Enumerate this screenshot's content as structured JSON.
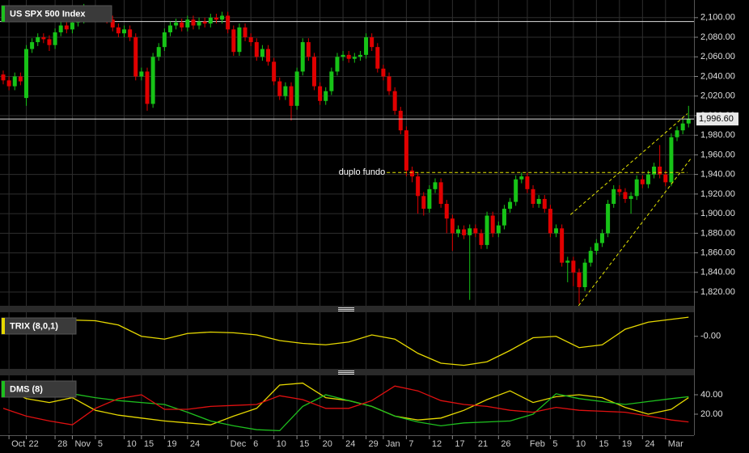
{
  "chart_data": [
    {
      "type": "candlestick",
      "title": "US SPX 500 Index",
      "categories": [
        null,
        "Oct",
        null,
        null,
        "22",
        null,
        null,
        null,
        null,
        "28",
        null,
        null,
        "Nov",
        null,
        null,
        null,
        "5",
        null,
        null,
        null,
        null,
        "10",
        null,
        null,
        "15",
        null,
        null,
        null,
        "19",
        null,
        null,
        null,
        "24",
        null,
        null,
        null,
        null,
        null,
        null,
        "Dec",
        null,
        null,
        null,
        "6",
        null,
        null,
        null,
        "10",
        null,
        null,
        null,
        "15",
        null,
        null,
        null,
        "20",
        null,
        null,
        null,
        "24",
        null,
        null,
        null,
        "29",
        null,
        null,
        "Jan",
        null,
        null,
        null,
        "7",
        null,
        null,
        null,
        "12",
        null,
        null,
        null,
        "17",
        null,
        null,
        null,
        "21",
        null,
        null,
        null,
        "26",
        null,
        null,
        null,
        null,
        "Feb",
        null,
        null,
        null,
        "5",
        null,
        null,
        null,
        "10",
        null,
        null,
        null,
        "15",
        null,
        null,
        null,
        "19",
        null,
        null,
        null,
        "24",
        null,
        null,
        null,
        "Mar",
        null,
        null,
        null,
        null
      ],
      "open": [
        2042,
        2036,
        2030,
        2040,
        2018,
        2068,
        2075,
        2080,
        2078,
        2072,
        2085,
        2092,
        2088,
        2095,
        2098,
        2108,
        2102,
        2105,
        2100,
        2098,
        2090,
        2084,
        2088,
        2080,
        2040,
        2045,
        2012,
        2060,
        2070,
        2085,
        2092,
        2095,
        2090,
        2098,
        2092,
        2096,
        2094,
        2100,
        2098,
        2102,
        2088,
        2065,
        2090,
        2080,
        2075,
        2060,
        2068,
        2055,
        2035,
        2020,
        2030,
        2010,
        2045,
        2075,
        2060,
        2030,
        2015,
        2025,
        2045,
        2060,
        2062,
        2058,
        2060,
        2062,
        2080,
        2070,
        2048,
        2040,
        2025,
        2005,
        1985,
        1944,
        1938,
        1918,
        1905,
        1925,
        1932,
        1910,
        1895,
        1880,
        1884,
        1878,
        1885,
        1880,
        1868,
        1898,
        1880,
        1888,
        1905,
        1912,
        1935,
        1938,
        1925,
        1910,
        1915,
        1905,
        1880,
        1885,
        1850,
        1852,
        1840,
        1825,
        1850,
        1862,
        1870,
        1880,
        1910,
        1925,
        1922,
        1915,
        1918,
        1935,
        1930,
        1940,
        1948,
        1940,
        1932,
        1978,
        1985,
        1992
      ],
      "high": [
        2046,
        2040,
        2044,
        2044,
        2072,
        2079,
        2084,
        2084,
        2082,
        2089,
        2096,
        2096,
        2099,
        2102,
        2114,
        2112,
        2109,
        2109,
        2104,
        2102,
        2094,
        2092,
        2092,
        2084,
        2049,
        2049,
        2064,
        2074,
        2089,
        2096,
        2099,
        2099,
        2102,
        2102,
        2100,
        2100,
        2104,
        2104,
        2106,
        2106,
        2092,
        2094,
        2094,
        2084,
        2079,
        2072,
        2072,
        2059,
        2039,
        2034,
        2034,
        2049,
        2079,
        2079,
        2064,
        2034,
        2029,
        2049,
        2064,
        2066,
        2066,
        2064,
        2066,
        2084,
        2084,
        2074,
        2052,
        2044,
        2029,
        2009,
        1989,
        1948,
        1942,
        1922,
        1929,
        1936,
        1936,
        1914,
        1899,
        1888,
        1888,
        1889,
        1889,
        1884,
        1902,
        1902,
        1892,
        1909,
        1916,
        1939,
        1942,
        1942,
        1929,
        1919,
        1919,
        1909,
        1889,
        1889,
        1856,
        1856,
        1844,
        1854,
        1866,
        1874,
        1884,
        1914,
        1929,
        1929,
        1926,
        1922,
        1939,
        1939,
        1944,
        1952,
        1970,
        1944,
        1982,
        1989,
        1996,
        2010
      ],
      "low": [
        2032,
        2026,
        2026,
        2031,
        2010,
        2064,
        2071,
        2074,
        2066,
        2068,
        2081,
        2084,
        2084,
        2091,
        2094,
        2098,
        2098,
        2096,
        2094,
        2086,
        2080,
        2080,
        2076,
        2036,
        2036,
        2005,
        2008,
        2056,
        2066,
        2081,
        2088,
        2086,
        2086,
        2088,
        2088,
        2090,
        2090,
        2094,
        2094,
        2084,
        2061,
        2061,
        2076,
        2071,
        2056,
        2056,
        2051,
        2031,
        2016,
        2016,
        1995,
        2006,
        2041,
        2056,
        2026,
        2011,
        2011,
        2021,
        2041,
        2056,
        2054,
        2054,
        2056,
        2058,
        2066,
        2044,
        2036,
        2021,
        2001,
        1981,
        1938,
        1932,
        1900,
        1898,
        1901,
        1921,
        1906,
        1880,
        1862,
        1876,
        1874,
        1812,
        1876,
        1864,
        1864,
        1876,
        1876,
        1884,
        1901,
        1908,
        1931,
        1921,
        1906,
        1906,
        1901,
        1876,
        1876,
        1846,
        1830,
        1826,
        1808,
        1821,
        1846,
        1858,
        1866,
        1876,
        1906,
        1918,
        1911,
        1900,
        1914,
        1926,
        1926,
        1936,
        1936,
        1928,
        1928,
        1974,
        1981,
        1988
      ],
      "close": [
        2036,
        2030,
        2040,
        2035,
        2068,
        2075,
        2080,
        2078,
        2072,
        2085,
        2092,
        2088,
        2095,
        2098,
        2108,
        2102,
        2105,
        2100,
        2098,
        2090,
        2084,
        2088,
        2080,
        2040,
        2045,
        2012,
        2060,
        2070,
        2085,
        2092,
        2095,
        2090,
        2098,
        2092,
        2096,
        2094,
        2100,
        2098,
        2102,
        2088,
        2065,
        2090,
        2080,
        2075,
        2060,
        2068,
        2055,
        2035,
        2020,
        2030,
        2010,
        2045,
        2075,
        2060,
        2030,
        2015,
        2025,
        2045,
        2060,
        2062,
        2058,
        2060,
        2062,
        2080,
        2070,
        2048,
        2040,
        2025,
        2005,
        1985,
        1944,
        1938,
        1918,
        1905,
        1925,
        1932,
        1910,
        1895,
        1880,
        1884,
        1878,
        1885,
        1880,
        1868,
        1898,
        1880,
        1888,
        1905,
        1912,
        1935,
        1938,
        1925,
        1910,
        1915,
        1905,
        1880,
        1885,
        1850,
        1852,
        1840,
        1825,
        1850,
        1862,
        1870,
        1880,
        1910,
        1925,
        1922,
        1915,
        1918,
        1935,
        1930,
        1940,
        1948,
        1940,
        1932,
        1978,
        1985,
        1992,
        1996.6
      ],
      "up_color": "#17c317",
      "down_color": "#e00000",
      "last_value_label": "1,996.60",
      "hlines": [
        2096
      ],
      "annotation": "duplo fundo",
      "trendline_color": "#e6e600",
      "trendlines": [
        {
          "x": [
            66.6,
            118.8
          ],
          "y": [
            1942,
            1942
          ]
        },
        {
          "x": [
            98.5,
            118.8
          ],
          "y": [
            1899,
            2002
          ]
        },
        {
          "x": [
            99.9,
            119.5
          ],
          "y": [
            1806,
            1957
          ]
        }
      ],
      "ylim": [
        1806,
        2118
      ],
      "yticks": [
        {
          "value": 1820,
          "label": "1,820.00"
        },
        {
          "value": 1840,
          "label": "1,840.00"
        },
        {
          "value": 1860,
          "label": "1,860.00"
        },
        {
          "value": 1880,
          "label": "1,880.00"
        },
        {
          "value": 1900,
          "label": "1,900.00"
        },
        {
          "value": 1920,
          "label": "1,920.00"
        },
        {
          "value": 1940,
          "label": "1,940.00"
        },
        {
          "value": 1960,
          "label": "1,960.00"
        },
        {
          "value": 1980,
          "label": "1,980.00"
        },
        {
          "value": 2000,
          "label": "2,000.00"
        },
        {
          "value": 2020,
          "label": "2,020.00"
        },
        {
          "value": 2040,
          "label": "2,040.00"
        },
        {
          "value": 2060,
          "label": "2,060.00"
        },
        {
          "value": 2080,
          "label": "2,080.00"
        },
        {
          "value": 2100,
          "label": "2,100.00"
        }
      ],
      "grid": true
    },
    {
      "type": "line",
      "title": "TRIX (8,0,1)",
      "x": [
        0,
        4,
        8,
        12,
        16,
        20,
        24,
        28,
        32,
        36,
        40,
        44,
        48,
        52,
        56,
        60,
        64,
        68,
        72,
        76,
        80,
        84,
        88,
        92,
        96,
        100,
        104,
        108,
        112,
        116,
        119
      ],
      "series": [
        {
          "color": "#e6d800",
          "values": [
            0.1,
            0.105,
            0.11,
            0.115,
            0.11,
            0.08,
            0.0,
            -0.02,
            0.02,
            0.03,
            0.025,
            0.01,
            -0.03,
            -0.05,
            -0.06,
            -0.04,
            0.01,
            -0.02,
            -0.12,
            -0.19,
            -0.205,
            -0.18,
            -0.1,
            -0.01,
            0.0,
            -0.08,
            -0.06,
            0.05,
            0.1,
            0.12,
            0.135
          ]
        }
      ],
      "ylim": [
        -0.23,
        0.17
      ],
      "yticks": [
        {
          "value": 0,
          "label": "-0.00"
        }
      ]
    },
    {
      "type": "line",
      "title": "DMS (8)",
      "x": [
        0,
        4,
        8,
        12,
        16,
        20,
        24,
        28,
        32,
        36,
        40,
        44,
        48,
        52,
        56,
        60,
        64,
        68,
        72,
        76,
        80,
        84,
        88,
        92,
        96,
        100,
        104,
        108,
        112,
        116,
        119
      ],
      "series": [
        {
          "color": "#e6d800",
          "values": [
            47,
            36,
            32,
            37,
            24,
            19,
            16,
            13,
            11,
            9,
            18,
            26,
            50,
            52,
            37,
            34,
            28,
            18,
            14,
            16,
            24,
            35,
            44,
            32,
            38,
            40,
            37,
            27,
            20,
            25,
            37
          ]
        },
        {
          "color": "#1ec01e",
          "values": [
            47,
            42,
            39,
            41,
            37,
            34,
            32,
            30,
            22,
            13,
            8,
            4,
            3,
            28,
            40,
            34,
            28,
            18,
            12,
            8,
            11,
            12,
            13,
            20,
            41,
            36,
            33,
            30,
            33,
            36,
            38
          ]
        },
        {
          "color": "#e01010",
          "values": [
            26,
            18,
            13,
            9,
            26,
            36,
            40,
            25,
            25,
            28,
            29,
            30,
            39,
            35,
            26,
            26,
            34,
            49,
            44,
            34,
            30,
            28,
            24,
            22,
            27,
            24,
            23,
            22,
            18,
            14,
            12
          ]
        }
      ],
      "ylim": [
        0,
        60
      ],
      "yticks": [
        {
          "value": 20,
          "label": "20.00"
        },
        {
          "value": 40,
          "label": "40.00"
        }
      ]
    }
  ]
}
